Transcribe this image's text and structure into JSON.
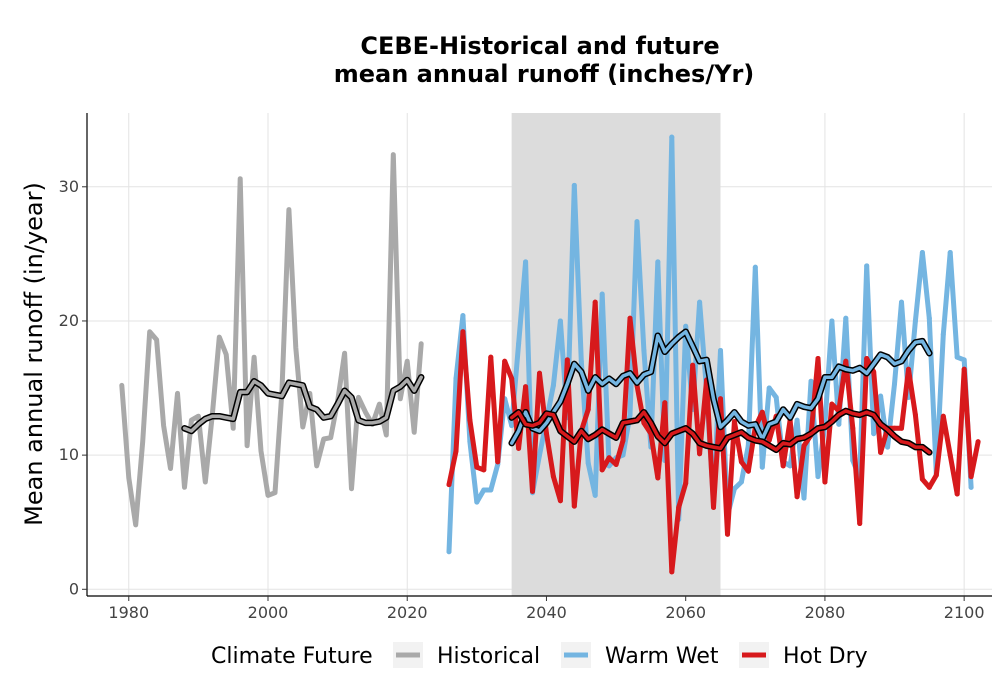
{
  "chart_data": {
    "type": "line",
    "title_line1": "CEBE-Historical and future",
    "title_line2": "mean annual runoff (inches/Yr)",
    "xlabel": "",
    "ylabel": "Mean annual runoff (in/year)",
    "xlim": [
      1974,
      2104
    ],
    "ylim": [
      -0.5,
      35.5
    ],
    "x_ticks": [
      1980,
      2000,
      2020,
      2040,
      2060,
      2080,
      2100
    ],
    "y_ticks": [
      0,
      10,
      20,
      30
    ],
    "grid": true,
    "shaded_band": {
      "x_start": 2035,
      "x_end": 2065,
      "color": "#dcdcdc"
    },
    "legend": {
      "title": "Climate Future",
      "position": "bottom",
      "entries": [
        {
          "label": "Historical",
          "color": "#a9a9a9"
        },
        {
          "label": "Warm Wet",
          "color": "#74b5e1"
        },
        {
          "label": "Hot Dry",
          "color": "#d7191c"
        }
      ]
    },
    "series": [
      {
        "name": "Historical",
        "color": "#a9a9a9",
        "x_start": 1979,
        "values": [
          15.2,
          8.3,
          4.8,
          11.0,
          19.2,
          18.6,
          12.2,
          9.0,
          14.6,
          7.6,
          12.6,
          12.9,
          8.0,
          13.0,
          18.8,
          17.5,
          12.0,
          30.6,
          10.7,
          17.3,
          10.3,
          7.0,
          7.2,
          14.7,
          28.3,
          18.0,
          12.1,
          14.6,
          9.2,
          11.2,
          11.3,
          14.0,
          17.6,
          7.5,
          14.3,
          13.2,
          12.3,
          13.8,
          11.5,
          32.4,
          14.2,
          17.0,
          11.7,
          18.3
        ]
      },
      {
        "name": "Historical moving average",
        "color": "#a9a9a9",
        "x_start": 1988,
        "values": [
          12.0,
          11.8,
          12.3,
          12.7,
          12.9,
          12.9,
          12.8,
          12.7,
          14.7,
          14.7,
          15.5,
          15.2,
          14.6,
          14.5,
          14.4,
          15.4,
          15.3,
          15.2,
          13.6,
          13.4,
          12.8,
          12.9,
          13.8,
          14.8,
          14.3,
          12.6,
          12.4,
          12.4,
          12.5,
          12.8,
          14.8,
          15.1,
          15.6,
          14.8,
          15.8
        ]
      },
      {
        "name": "Warm Wet",
        "color": "#74b5e1",
        "x_start": 2026,
        "values": [
          2.8,
          15.7,
          20.4,
          11.0,
          6.5,
          7.4,
          7.4,
          9.3,
          14.2,
          12.2,
          18.3,
          24.4,
          7.2,
          10.0,
          12.6,
          15.2,
          20.0,
          12.8,
          30.1,
          17.0,
          9.4,
          7.0,
          22.0,
          9.2,
          9.8,
          10.0,
          13.0,
          27.4,
          17.8,
          10.6,
          24.4,
          9.6,
          33.7,
          5.2,
          19.6,
          13.4,
          21.4,
          14.8,
          6.4,
          17.8,
          5.5,
          7.5,
          8.0,
          10.7,
          24.0,
          9.1,
          15.0,
          14.3,
          9.5,
          9.2,
          12.6,
          6.8,
          15.5,
          8.4,
          12.3,
          20.0,
          12.3,
          20.2,
          9.6,
          8.3,
          24.1,
          11.6,
          14.4,
          10.6,
          15.3,
          21.4,
          14.3,
          20.0,
          25.1,
          20.2,
          8.6,
          19.0,
          25.1,
          17.3,
          17.1,
          7.6
        ]
      },
      {
        "name": "Warm Wet moving average",
        "color": "#74b5e1",
        "x_start": 2035,
        "values": [
          10.9,
          11.8,
          13.2,
          12.0,
          11.8,
          12.4,
          13.2,
          14.0,
          15.3,
          16.8,
          16.2,
          14.8,
          15.8,
          15.3,
          15.7,
          15.3,
          15.9,
          16.1,
          15.4,
          16.0,
          16.2,
          18.9,
          17.7,
          18.3,
          18.8,
          19.2,
          18.1,
          17.0,
          17.1,
          14.2,
          12.1,
          12.6,
          13.2,
          12.5,
          12.2,
          12.3,
          11.2,
          12.3,
          12.5,
          13.4,
          12.8,
          13.8,
          13.6,
          13.5,
          14.2,
          15.8,
          15.8,
          16.6,
          16.4,
          16.3,
          16.5,
          16.1,
          16.8,
          17.5,
          17.3,
          16.8,
          17.0,
          17.8,
          18.4,
          18.5,
          17.6
        ]
      },
      {
        "name": "Hot Dry",
        "color": "#d7191c",
        "x_start": 2026,
        "values": [
          7.8,
          10.3,
          19.2,
          12.6,
          9.1,
          8.9,
          17.3,
          9.5,
          17.0,
          15.7,
          10.5,
          15.1,
          7.3,
          16.1,
          11.6,
          8.4,
          6.6,
          17.1,
          6.2,
          11.8,
          13.4,
          21.4,
          8.9,
          9.8,
          9.3,
          11.1,
          20.2,
          15.2,
          12.4,
          11.6,
          8.3,
          13.9,
          1.3,
          6.1,
          7.9,
          16.7,
          10.1,
          15.6,
          6.1,
          14.2,
          4.1,
          12.5,
          9.5,
          8.8,
          12.1,
          13.2,
          11.1,
          12.9,
          9.2,
          12.6,
          6.9,
          10.7,
          11.5,
          17.2,
          8.0,
          13.8,
          13.3,
          17.0,
          12.0,
          4.9,
          17.2,
          16.2,
          10.2,
          12.0,
          12.0,
          12.0,
          16.4,
          13.0,
          8.2,
          7.6,
          8.5,
          12.9,
          10.0,
          7.1,
          16.4,
          8.4,
          11.0
        ]
      },
      {
        "name": "Hot Dry moving average",
        "color": "#d7191c",
        "x_start": 2035,
        "values": [
          12.8,
          13.2,
          12.3,
          12.2,
          12.4,
          13.1,
          13.0,
          11.8,
          11.4,
          11.0,
          11.8,
          11.2,
          11.5,
          11.9,
          11.6,
          11.3,
          12.4,
          12.5,
          12.6,
          13.2,
          12.4,
          11.4,
          10.9,
          11.6,
          11.8,
          12.0,
          11.6,
          10.9,
          10.7,
          10.6,
          10.5,
          11.3,
          11.5,
          11.7,
          11.3,
          11.1,
          11.0,
          10.7,
          10.4,
          10.9,
          10.8,
          11.2,
          11.3,
          11.6,
          12.0,
          12.1,
          12.5,
          13.0,
          13.3,
          13.1,
          13.0,
          13.2,
          13.0,
          12.3,
          11.9,
          11.4,
          11.0,
          10.9,
          10.6,
          10.6,
          10.2
        ]
      }
    ]
  }
}
